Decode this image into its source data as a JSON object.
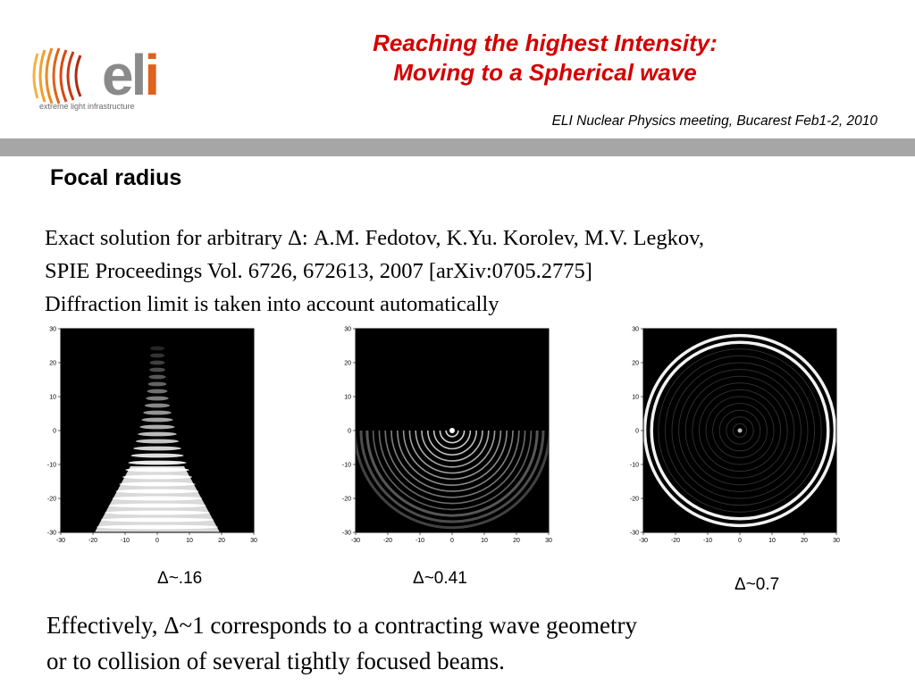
{
  "header": {
    "logo_word": "el",
    "logo_word_accent": "i",
    "logo_tagline": "extreme light infrastructure",
    "title_line1": "Reaching the highest Intensity:",
    "title_line2": "Moving to a Spherical wave",
    "meeting": "ELI Nuclear Physics meeting, Bucarest Feb1-2, 2010"
  },
  "section_heading": "Focal radius",
  "body_lines": [
    "Exact solution for arbitrary Δ: A.M. Fedotov, K.Yu. Korolev, M.V. Legkov,",
    "SPIE Proceedings Vol. 6726, 672613, 2007 [arXiv:0705.2775]",
    "Diffraction limit is taken into account automatically"
  ],
  "plots": [
    {
      "caption": "Δ~.16",
      "pattern": "narrow-beam"
    },
    {
      "caption": "Δ~0.41",
      "pattern": "partial-rings"
    },
    {
      "caption": "Δ~0.7",
      "pattern": "full-rings"
    }
  ],
  "axis_ticks": [
    "-30",
    "-20",
    "-10",
    "0",
    "10",
    "20",
    "30"
  ],
  "conclusion_lines": [
    "Effectively, Δ~1 corresponds to a contracting wave geometry",
    "or  to collision of several tightly focused beams."
  ],
  "colors": {
    "title": "#d40000",
    "band": "#a6a6a6",
    "logo_gray": "#8a8a8a",
    "logo_orange": "#e0621b"
  }
}
